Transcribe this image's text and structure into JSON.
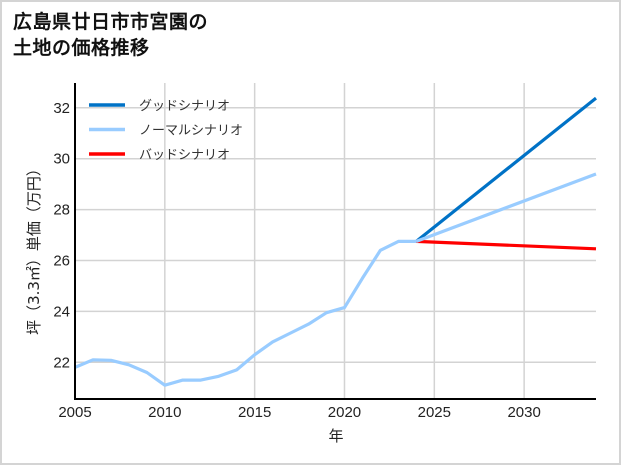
{
  "chart_data": {
    "type": "line",
    "title": "広島県廿日市市宮園の土地の価格推移",
    "title_lines": [
      "広島県廿日市市宮園の",
      "土地の価格推移"
    ],
    "xlabel": "年",
    "ylabel": "坪（3.3㎡）単価（万円）",
    "xlim": [
      2005,
      2034
    ],
    "ylim": [
      20.6,
      32.9
    ],
    "xticks": [
      2005,
      2010,
      2015,
      2020,
      2025,
      2030
    ],
    "yticks": [
      22,
      24,
      26,
      28,
      30,
      32
    ],
    "grid": true,
    "legend_position": "upper left",
    "series": [
      {
        "name": "ノーマルシナリオ",
        "color": "#99ccff",
        "role": "historical",
        "x": [
          2005,
          2006,
          2007,
          2008,
          2009,
          2010,
          2011,
          2012,
          2013,
          2014,
          2015,
          2016,
          2017,
          2018,
          2019,
          2020,
          2021,
          2022,
          2023,
          2024
        ],
        "values": [
          21.8,
          22.1,
          22.08,
          21.9,
          21.6,
          21.1,
          21.3,
          21.3,
          21.45,
          21.7,
          22.3,
          22.8,
          23.15,
          23.5,
          23.95,
          24.15,
          25.3,
          26.4,
          26.75,
          26.75
        ]
      },
      {
        "name": "グッドシナリオ",
        "color": "#0072c6",
        "role": "forecast",
        "x": [
          2024,
          2034
        ],
        "values": [
          26.75,
          32.38
        ]
      },
      {
        "name": "ノーマルシナリオ",
        "color": "#99ccff",
        "role": "forecast",
        "x": [
          2024,
          2034
        ],
        "values": [
          26.75,
          29.4
        ]
      },
      {
        "name": "バッドシナリオ",
        "color": "#ff0000",
        "role": "forecast",
        "x": [
          2024,
          2034
        ],
        "values": [
          26.75,
          26.46
        ]
      }
    ],
    "legend": [
      {
        "label": "グッドシナリオ",
        "color": "#0072c6"
      },
      {
        "label": "ノーマルシナリオ",
        "color": "#99ccff"
      },
      {
        "label": "バッドシナリオ",
        "color": "#ff0000"
      }
    ]
  }
}
